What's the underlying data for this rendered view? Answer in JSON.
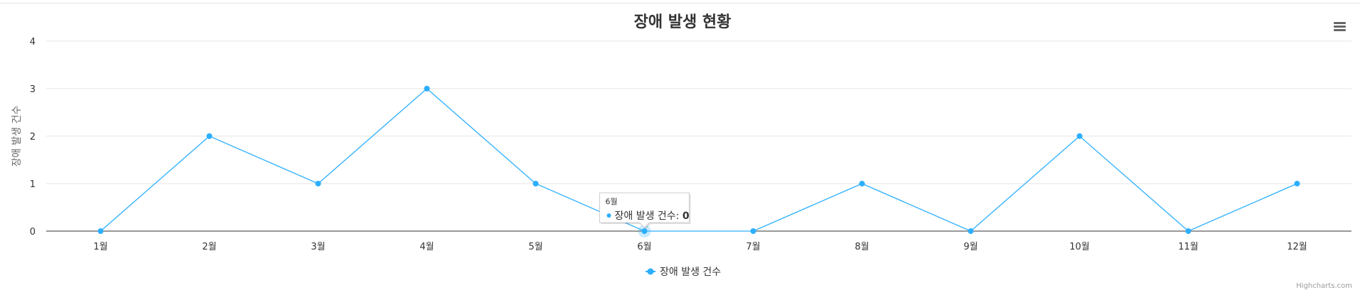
{
  "chart_data": {
    "type": "line",
    "title": "장애 발생 현황",
    "ylabel": "장애 발생 건수",
    "categories": [
      "1월",
      "2월",
      "3월",
      "4월",
      "5월",
      "6월",
      "7월",
      "8월",
      "9월",
      "10월",
      "11월",
      "12월"
    ],
    "series": [
      {
        "name": "장애 발생 건수",
        "color": "#2caffe",
        "values": [
          0,
          2,
          1,
          3,
          1,
          0,
          0,
          1,
          0,
          2,
          0,
          1
        ]
      }
    ],
    "ylim": [
      0,
      4
    ],
    "yticks": [
      "0",
      "1",
      "2",
      "3",
      "4"
    ],
    "grid": true,
    "legend": "bottom-center"
  },
  "tooltip": {
    "header": "6월",
    "series_label": "장애 발생 건수",
    "value": "0",
    "category_index": 5
  },
  "menu_icon": "hamburger-menu-icon",
  "credits": "Highcharts.com"
}
